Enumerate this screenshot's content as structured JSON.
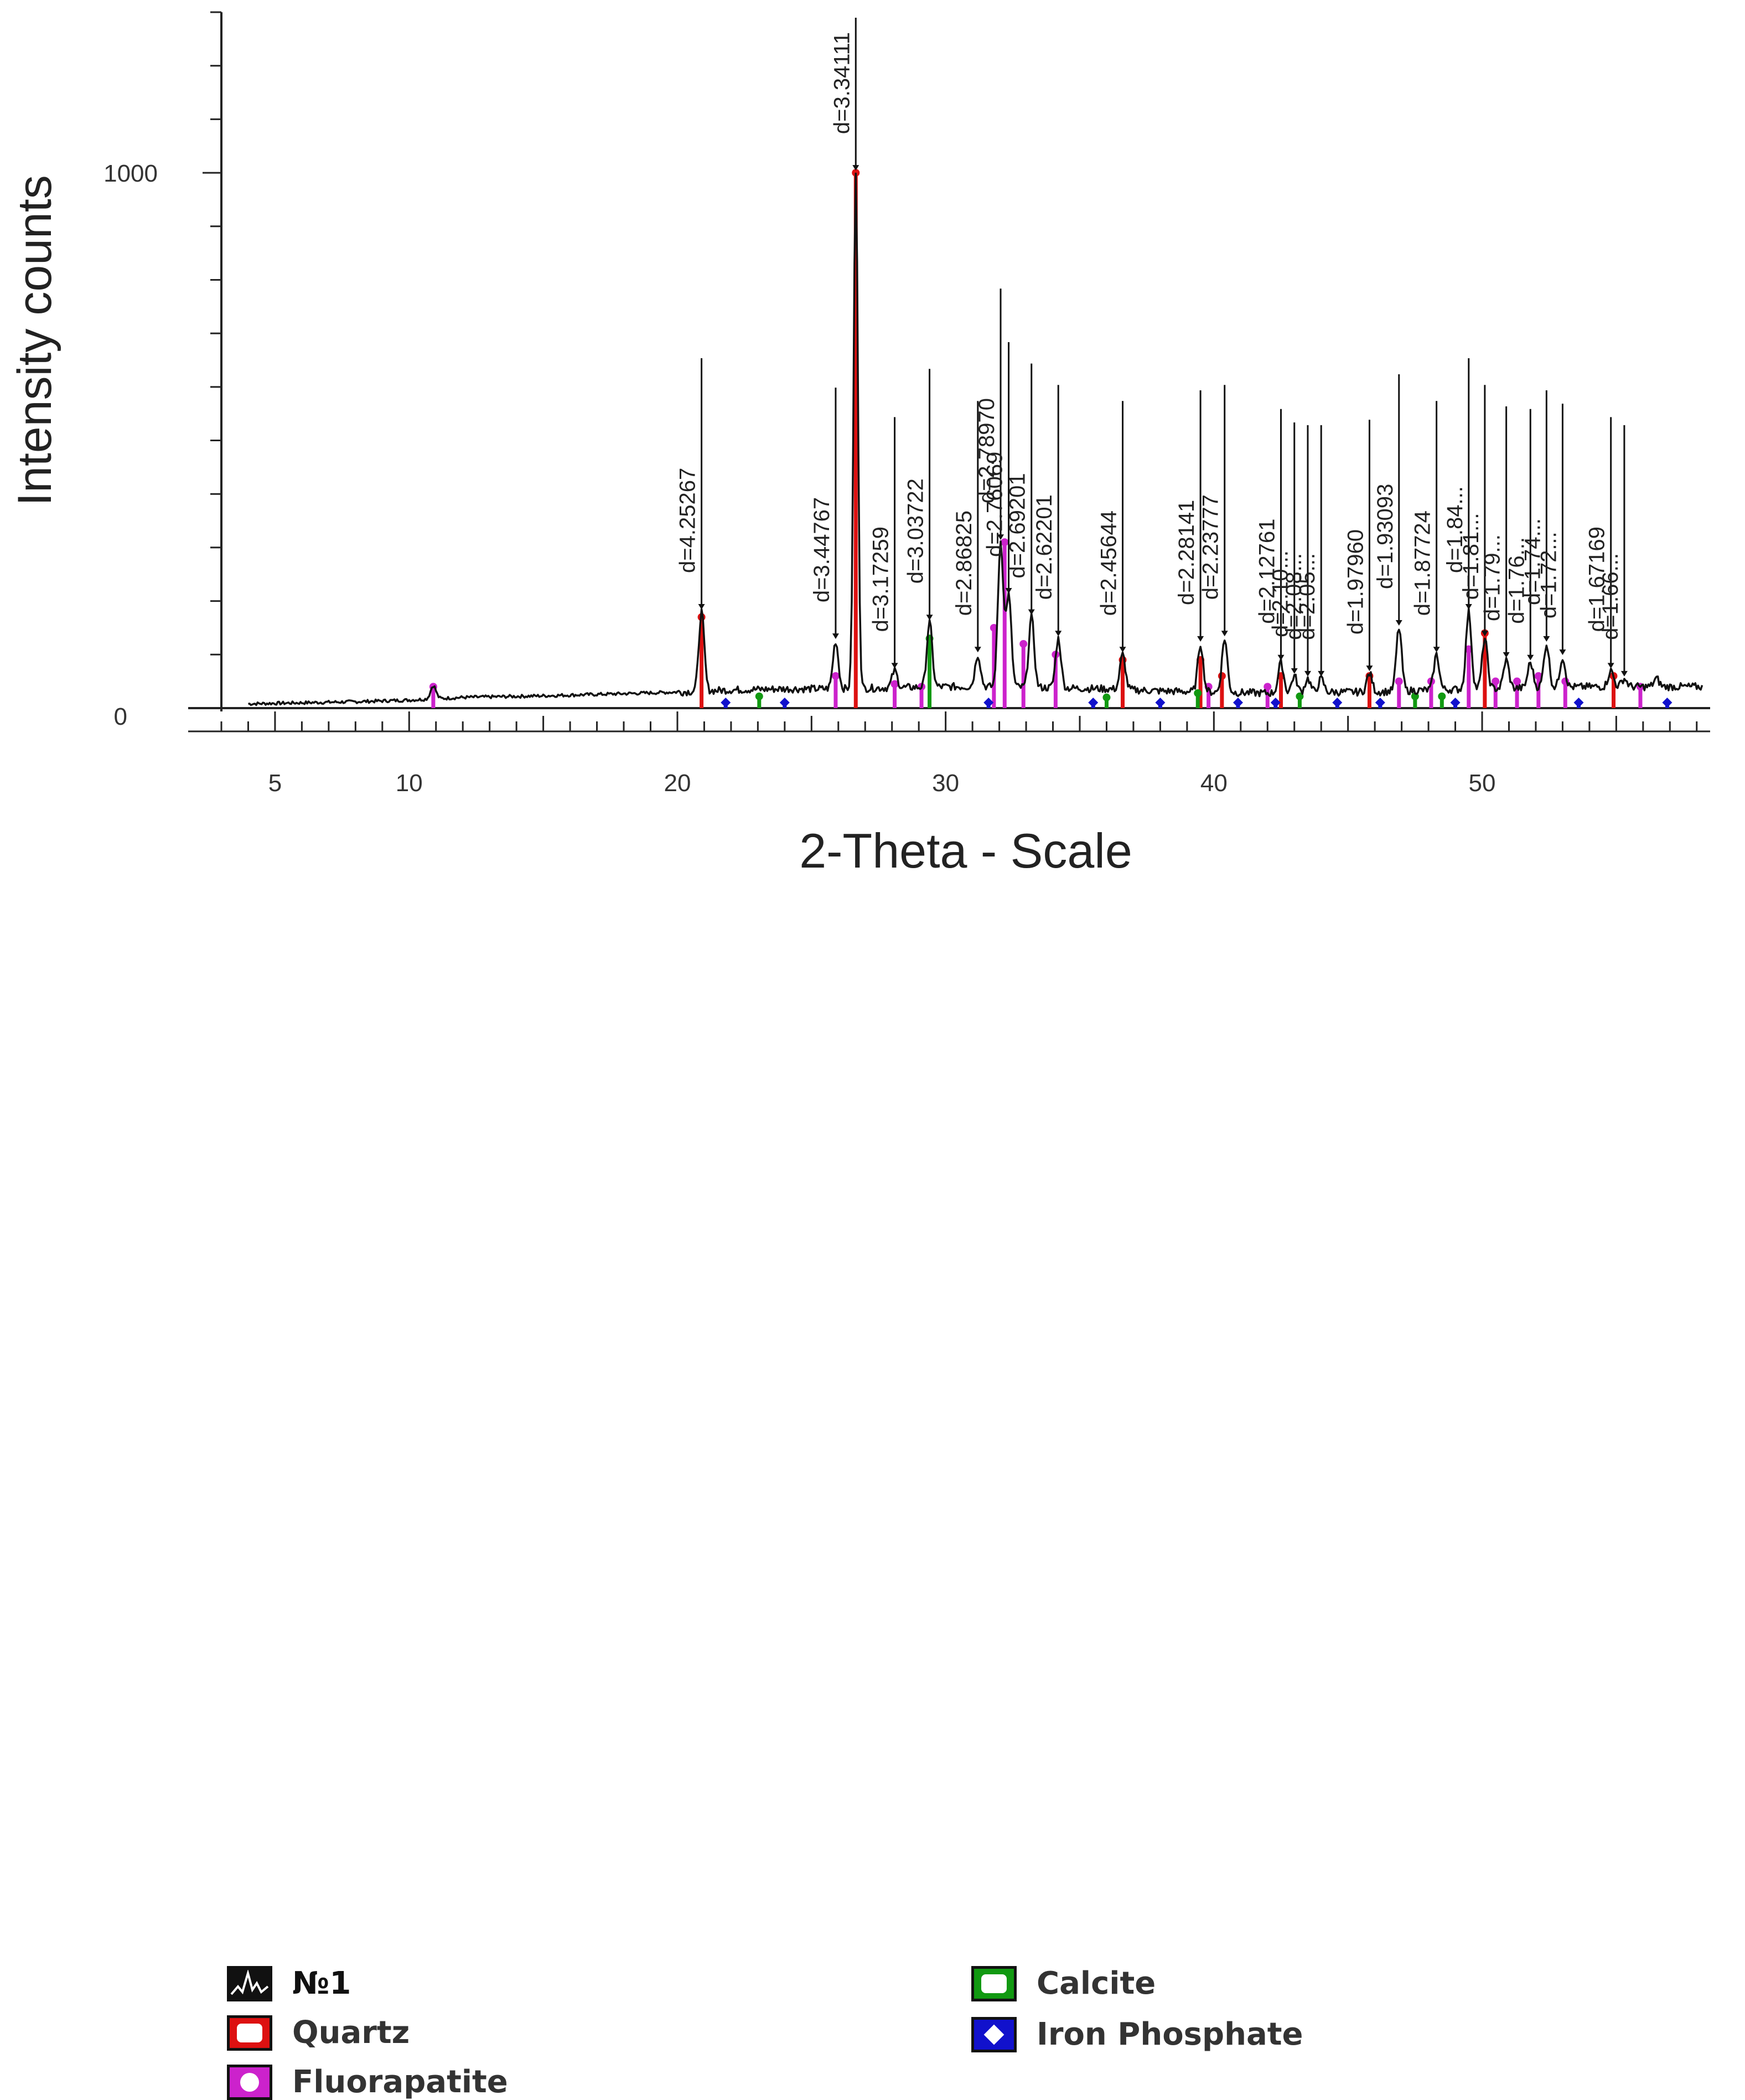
{
  "chart_data": {
    "type": "line",
    "title": "",
    "xlabel": "2-Theta - Scale",
    "ylabel": "Intensity counts",
    "xlim": [
      3,
      58.5
    ],
    "ylim": [
      0,
      1300
    ],
    "x_ticks": [
      5,
      10,
      20,
      30,
      40,
      50
    ],
    "y_ticks": [
      0,
      1000
    ],
    "grid": false,
    "series_name": "№1",
    "series_color": "#111111",
    "baseline": [
      [
        4,
        8
      ],
      [
        6,
        10
      ],
      [
        8,
        12
      ],
      [
        10,
        15
      ],
      [
        12,
        20
      ],
      [
        15,
        23
      ],
      [
        18,
        27
      ],
      [
        20,
        30
      ],
      [
        22,
        34
      ],
      [
        24,
        36
      ],
      [
        26,
        36
      ],
      [
        28,
        38
      ],
      [
        30,
        40
      ],
      [
        32,
        40
      ],
      [
        34,
        38
      ],
      [
        36,
        36
      ],
      [
        38,
        32
      ],
      [
        40,
        30
      ],
      [
        42,
        28
      ],
      [
        44,
        30
      ],
      [
        46,
        30
      ],
      [
        48,
        34
      ],
      [
        50,
        36
      ],
      [
        52,
        38
      ],
      [
        54,
        40
      ],
      [
        56,
        40
      ],
      [
        58,
        40
      ]
    ],
    "peaks": [
      {
        "x": 10.9,
        "y": 42,
        "label": ""
      },
      {
        "x": 20.9,
        "y": 180,
        "label": "d=4.25267"
      },
      {
        "x": 25.9,
        "y": 125,
        "label": "d=3.44767"
      },
      {
        "x": 26.65,
        "y": 1000,
        "label": "d=3.34111"
      },
      {
        "x": 28.1,
        "y": 70,
        "label": "d=3.17259"
      },
      {
        "x": 29.4,
        "y": 160,
        "label": "d=3.03722"
      },
      {
        "x": 31.2,
        "y": 100,
        "label": "d=2.86825"
      },
      {
        "x": 32.05,
        "y": 310,
        "label": "d=2.78970"
      },
      {
        "x": 32.35,
        "y": 210,
        "label": "d=2.76069"
      },
      {
        "x": 33.2,
        "y": 170,
        "label": "d=2.69201"
      },
      {
        "x": 34.2,
        "y": 130,
        "label": "d=2.62201"
      },
      {
        "x": 36.6,
        "y": 100,
        "label": "d=2.45644"
      },
      {
        "x": 39.5,
        "y": 120,
        "label": "d=2.28141"
      },
      {
        "x": 40.4,
        "y": 130,
        "label": "d=2.23777"
      },
      {
        "x": 42.5,
        "y": 85,
        "label": "d=2.12761"
      },
      {
        "x": 43.0,
        "y": 60,
        "label": "d=2.10..."
      },
      {
        "x": 43.5,
        "y": 55,
        "label": "d=2.08..."
      },
      {
        "x": 44.0,
        "y": 55,
        "label": "d=2.05..."
      },
      {
        "x": 45.8,
        "y": 65,
        "label": "d=1.97960"
      },
      {
        "x": 46.9,
        "y": 150,
        "label": "d=1.93093"
      },
      {
        "x": 48.3,
        "y": 100,
        "label": "d=1.87724"
      },
      {
        "x": 49.5,
        "y": 180,
        "label": "d=1.84..."
      },
      {
        "x": 50.1,
        "y": 130,
        "label": "d=1.81..."
      },
      {
        "x": 50.9,
        "y": 90,
        "label": "d=1.79..."
      },
      {
        "x": 51.8,
        "y": 85,
        "label": "d=1.76..."
      },
      {
        "x": 52.4,
        "y": 120,
        "label": "d=1.74..."
      },
      {
        "x": 53.0,
        "y": 95,
        "label": "d=1.72..."
      },
      {
        "x": 54.8,
        "y": 70,
        "label": "d=1.67169"
      },
      {
        "x": 55.3,
        "y": 55,
        "label": "d=1.66..."
      },
      {
        "x": 56.5,
        "y": 55,
        "label": ""
      }
    ],
    "phases": [
      {
        "name": "Quartz",
        "color": "#dd1111",
        "sticks": [
          [
            20.9,
            170
          ],
          [
            26.65,
            1000
          ],
          [
            36.6,
            90
          ],
          [
            39.5,
            90
          ],
          [
            40.3,
            60
          ],
          [
            42.5,
            60
          ],
          [
            45.8,
            60
          ],
          [
            50.1,
            140
          ],
          [
            54.9,
            60
          ]
        ]
      },
      {
        "name": "Fluorapatite",
        "color": "#cc22cc",
        "sticks": [
          [
            10.9,
            40
          ],
          [
            25.9,
            60
          ],
          [
            28.1,
            45
          ],
          [
            29.1,
            40
          ],
          [
            31.8,
            150
          ],
          [
            32.2,
            310
          ],
          [
            32.9,
            120
          ],
          [
            34.1,
            100
          ],
          [
            39.8,
            40
          ],
          [
            42.0,
            40
          ],
          [
            46.9,
            50
          ],
          [
            48.1,
            50
          ],
          [
            49.5,
            110
          ],
          [
            50.5,
            50
          ],
          [
            51.3,
            50
          ],
          [
            52.1,
            60
          ],
          [
            53.1,
            50
          ],
          [
            55.9,
            40
          ]
        ]
      },
      {
        "name": "Calcite",
        "color": "#119911",
        "sticks": [
          [
            23.05,
            22
          ],
          [
            29.4,
            130
          ],
          [
            36.0,
            20
          ],
          [
            39.4,
            28
          ],
          [
            43.2,
            22
          ],
          [
            47.5,
            22
          ],
          [
            48.5,
            22
          ]
        ]
      },
      {
        "name": "Iron Phosphate",
        "color": "#1111cc",
        "sticks": [
          [
            21.8,
            15
          ],
          [
            24.0,
            12
          ],
          [
            31.6,
            15
          ],
          [
            35.5,
            12
          ],
          [
            38.0,
            12
          ],
          [
            40.9,
            12
          ],
          [
            42.3,
            12
          ],
          [
            44.6,
            12
          ],
          [
            46.2,
            12
          ],
          [
            49.0,
            12
          ],
          [
            53.6,
            12
          ],
          [
            56.9,
            12
          ]
        ]
      }
    ],
    "legend": {
      "placement": "bottom",
      "entries": [
        {
          "name": "№1",
          "color": "#111111",
          "marker": "line"
        },
        {
          "name": "Quartz",
          "color": "#dd1111",
          "marker": "square"
        },
        {
          "name": "Fluorapatite",
          "color": "#cc22cc",
          "marker": "circle"
        },
        {
          "name": "Calcite",
          "color": "#119911",
          "marker": "square"
        },
        {
          "name": "Iron Phosphate",
          "color": "#1111cc",
          "marker": "diamond"
        }
      ]
    }
  }
}
